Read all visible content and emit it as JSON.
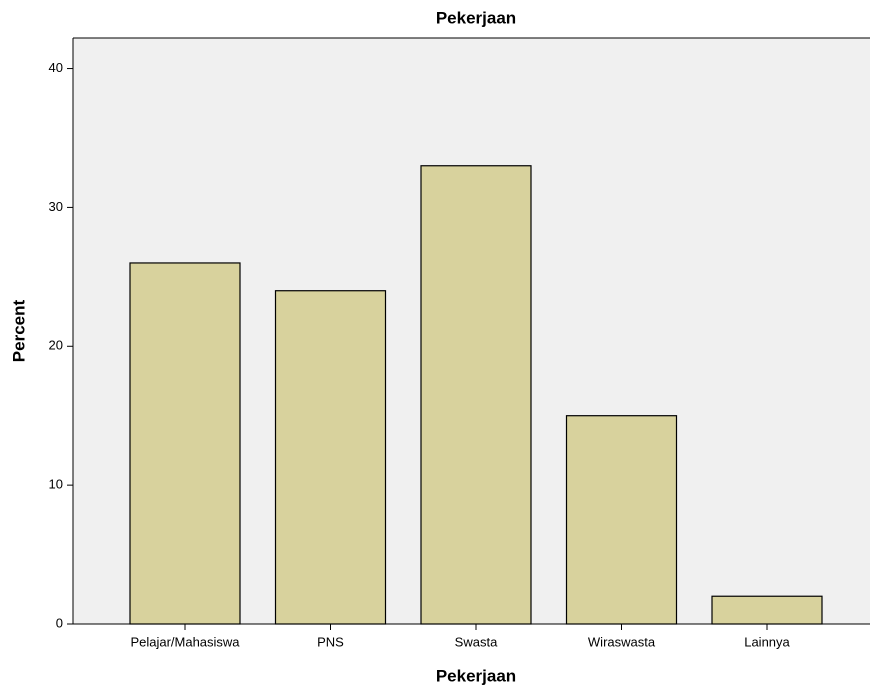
{
  "chart_data": {
    "type": "bar",
    "title": "Pekerjaan",
    "x_label": "Pekerjaan",
    "y_label": "Percent",
    "categories": [
      "Pelajar/Mahasiswa",
      "PNS",
      "Swasta",
      "Wiraswasta",
      "Lainnya"
    ],
    "values": [
      26,
      24,
      33,
      15,
      2
    ],
    "color": "#d3cd8e",
    "ylim": [
      0,
      42.2
    ],
    "yticks": [
      0,
      10,
      20,
      30,
      40
    ],
    "grid": false
  }
}
